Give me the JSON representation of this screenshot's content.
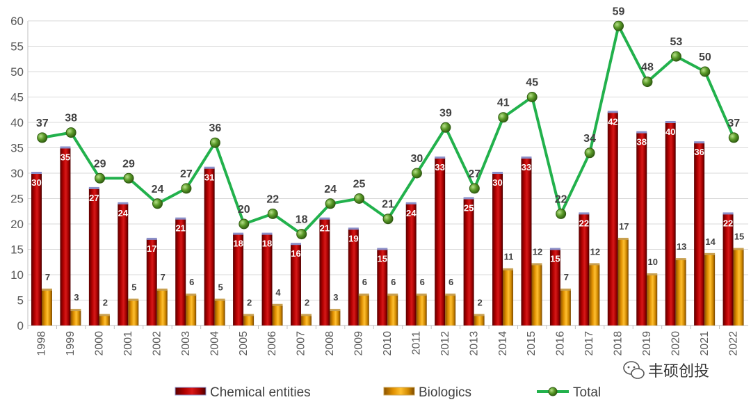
{
  "chart_data": {
    "type": "bar",
    "categories": [
      "1998",
      "1999",
      "2000",
      "2001",
      "2002",
      "2003",
      "2004",
      "2005",
      "2006",
      "2007",
      "2008",
      "2009",
      "2010",
      "2011",
      "2012",
      "2013",
      "2014",
      "2015",
      "2016",
      "2017",
      "2018",
      "2019",
      "2020",
      "2021",
      "2022"
    ],
    "series": [
      {
        "name": "Chemical entities",
        "type": "bar",
        "color": "#c00000",
        "values": [
          30,
          35,
          27,
          24,
          17,
          21,
          31,
          18,
          18,
          16,
          21,
          19,
          15,
          24,
          33,
          25,
          30,
          33,
          15,
          22,
          42,
          38,
          40,
          36,
          22
        ]
      },
      {
        "name": "Biologics",
        "type": "bar",
        "color": "#f0a000",
        "values": [
          7,
          3,
          2,
          5,
          7,
          6,
          5,
          2,
          4,
          2,
          3,
          6,
          6,
          6,
          6,
          2,
          11,
          12,
          7,
          12,
          17,
          10,
          13,
          14,
          15
        ]
      },
      {
        "name": "Total",
        "type": "line",
        "color": "#22b14c",
        "marker_color": "#4e8a1e",
        "values": [
          37,
          38,
          29,
          29,
          24,
          27,
          36,
          20,
          22,
          18,
          24,
          25,
          21,
          30,
          39,
          27,
          41,
          45,
          22,
          34,
          59,
          48,
          53,
          50,
          37
        ]
      }
    ],
    "ylim": [
      0,
      60
    ],
    "yticks": [
      0,
      5,
      10,
      15,
      20,
      25,
      30,
      35,
      40,
      45,
      50,
      55,
      60
    ],
    "grid": true,
    "legend_position": "bottom",
    "title": "",
    "xlabel": "",
    "ylabel": ""
  },
  "watermark": {
    "text": "丰硕创投",
    "icon": "wechat-icon"
  }
}
